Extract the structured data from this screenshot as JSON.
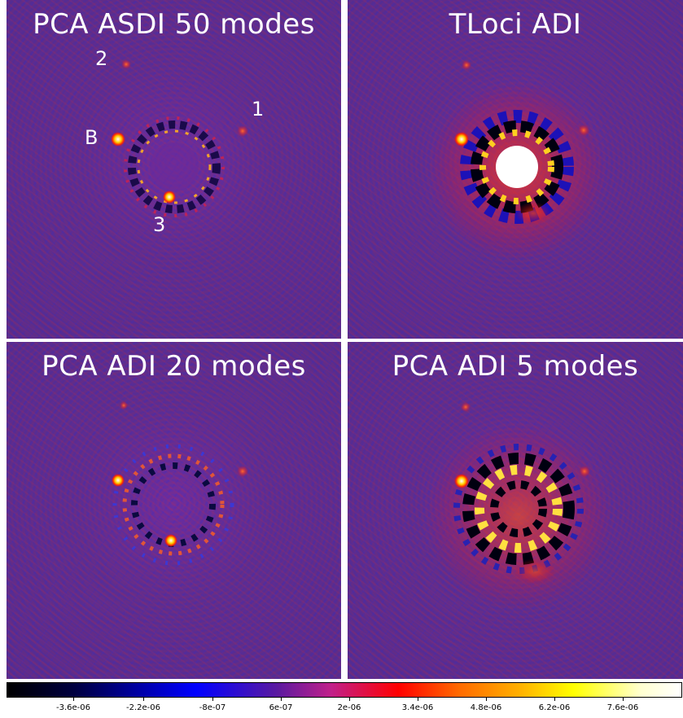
{
  "panels": [
    {
      "title": "PCA ASDI 50 modes",
      "labels": [
        "2",
        "1",
        "B",
        "3"
      ]
    },
    {
      "title": "TLoci ADI",
      "labels": []
    },
    {
      "title": "PCA ADI 20 modes",
      "labels": []
    },
    {
      "title": "PCA ADI 5 modes",
      "labels": []
    }
  ],
  "colorbar": {
    "colormap": "gnuplot-like (black-blue-purple-red-yellow-white)",
    "tick_labels": [
      "-3.6e-06",
      "-2.2e-06",
      "-8e-07",
      "6e-07",
      "2e-06",
      "3.4e-06",
      "4.8e-06",
      "6.2e-06",
      "7.6e-06"
    ]
  },
  "colors": {
    "background": "#5a2d8c",
    "divider": "#ffffff",
    "label_text": "#ffffff"
  }
}
